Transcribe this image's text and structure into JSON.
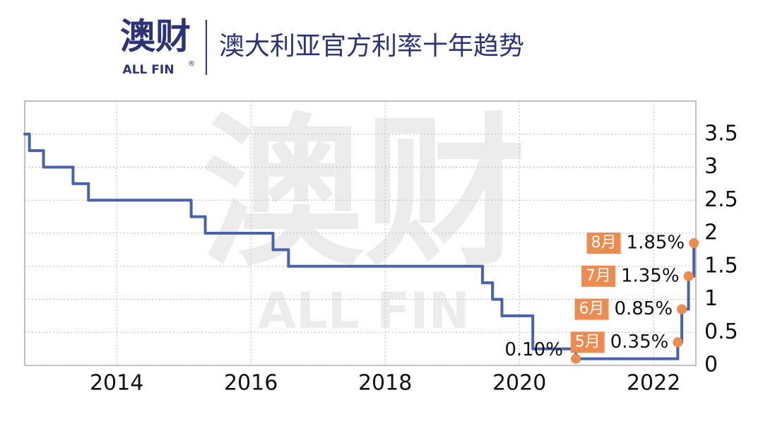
{
  "header": {
    "logo": "澳财",
    "logo_sub": "ALL FIN",
    "registered": "®"
  },
  "chart_data": {
    "type": "line",
    "title": "澳大利亚官方利率十年趋势",
    "xlim": [
      2012.63,
      2022.63
    ],
    "xticks": [
      2014,
      2016,
      2018,
      2020,
      2022
    ],
    "ylim": [
      0,
      4
    ],
    "yticks": [
      0,
      0.5,
      1,
      1.5,
      2,
      2.5,
      3,
      3.5
    ],
    "grid": true,
    "series": [
      {
        "color": "#4a62a9",
        "marker_color": "#ec8c53",
        "x": [
          2012.63,
          2012.7,
          2012.91,
          2013.35,
          2013.58,
          2015.11,
          2015.32,
          2016.33,
          2016.56,
          2019.45,
          2019.6,
          2019.74,
          2020.2,
          2020.84,
          2022.36,
          2022.42,
          2022.52,
          2022.6
        ],
        "values": [
          3.5,
          3.25,
          3.0,
          2.75,
          2.5,
          2.25,
          2.0,
          1.75,
          1.5,
          1.25,
          1.0,
          0.75,
          0.25,
          0.1,
          0.35,
          0.85,
          1.35,
          1.85
        ],
        "value_labels": [
          null,
          null,
          null,
          null,
          null,
          null,
          null,
          null,
          null,
          null,
          null,
          null,
          null,
          "0.10%",
          "0.35%",
          "0.85%",
          "1.35%",
          "1.85%"
        ],
        "month_labels": [
          null,
          null,
          null,
          null,
          null,
          null,
          null,
          null,
          null,
          null,
          null,
          null,
          null,
          null,
          "5月",
          "6月",
          "7月",
          "8月"
        ]
      }
    ]
  }
}
